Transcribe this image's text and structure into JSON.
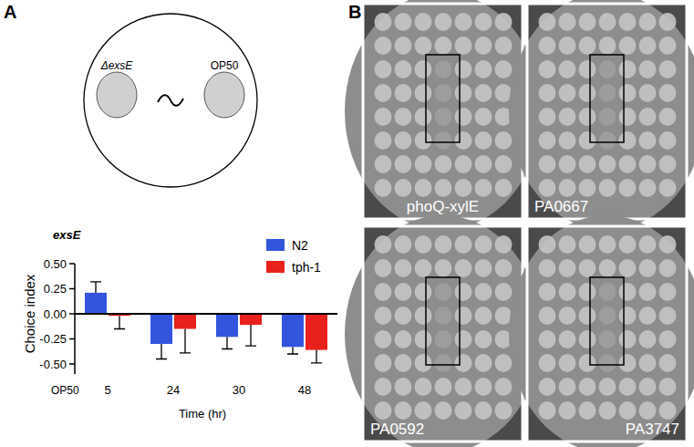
{
  "chart_data": {
    "type": "bar",
    "categories": [
      "5",
      "24",
      "30",
      "48"
    ],
    "x_label": "Time (hr)",
    "y_label": "Choice index",
    "annotations": [
      "exsE",
      "OP50"
    ],
    "series": [
      {
        "name": "N2",
        "color": "#3355dd",
        "values": [
          0.21,
          -0.3,
          -0.23,
          -0.33
        ],
        "errors": [
          0.11,
          0.15,
          0.12,
          0.07
        ]
      },
      {
        "name": "tph-1",
        "color": "#e8211c",
        "values": [
          -0.02,
          -0.15,
          -0.11,
          -0.36
        ],
        "errors": [
          0.13,
          0.24,
          0.21,
          0.13
        ]
      }
    ],
    "ylim": [
      -0.6,
      0.5
    ],
    "yticks": [
      {
        "value": -0.5,
        "label": "-0.50"
      },
      {
        "value": -0.25,
        "label": "-0.25"
      },
      {
        "value": 0,
        "label": "0.00"
      },
      {
        "value": 0.25,
        "label": "0.25"
      },
      {
        "value": 0.5,
        "label": "0.50"
      }
    ],
    "legend": "upper right",
    "grid": false
  },
  "figure": {
    "panel_labels": [
      "A",
      "B"
    ],
    "diagram": {
      "left": "ΔexsE",
      "right": "OP50"
    },
    "plates": [
      "phoQ-xylE",
      "PA0667",
      "PA0592",
      "PA3747"
    ]
  }
}
